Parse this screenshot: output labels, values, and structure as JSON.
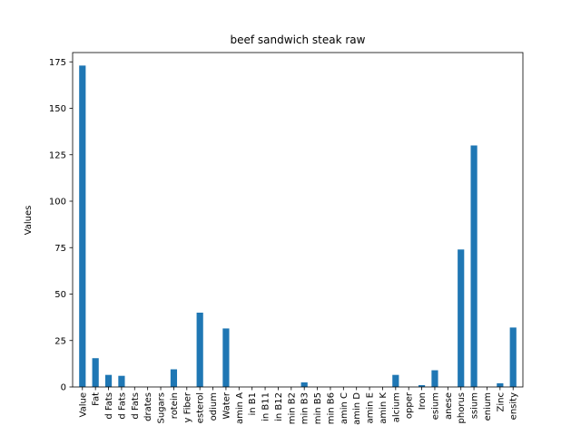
{
  "chart_data": {
    "type": "bar",
    "title": "beef sandwich steak raw",
    "xlabel": "",
    "ylabel": "Values",
    "ylim": [
      0,
      180
    ],
    "yticks": [
      0,
      25,
      50,
      75,
      100,
      125,
      150,
      175
    ],
    "bar_color": "#1f77b4",
    "grid": false,
    "categories": [
      "Value",
      "Fat",
      "d Fats",
      "d Fats",
      "d Fats",
      "drates",
      "Sugars",
      "rotein",
      "y Fiber",
      "esterol",
      "odium",
      "Water",
      "amin A",
      "in B1",
      "in B11",
      "in B12",
      "min B2",
      "min B3",
      "min B5",
      "min B6",
      "amin C",
      "amin D",
      "amin E",
      "amin K",
      "alcium",
      "opper",
      "Iron",
      "esium",
      "anese",
      "phorus",
      "ssium",
      "enium",
      "Zinc",
      "ensity"
    ],
    "values": [
      173,
      15.5,
      6.5,
      6,
      0,
      0,
      0,
      9.5,
      0,
      40,
      0,
      31.5,
      0,
      0,
      0,
      0,
      0,
      2.5,
      0,
      0,
      0,
      0,
      0,
      0,
      6.5,
      0,
      1,
      9,
      0,
      74,
      130,
      0,
      2,
      32
    ]
  }
}
